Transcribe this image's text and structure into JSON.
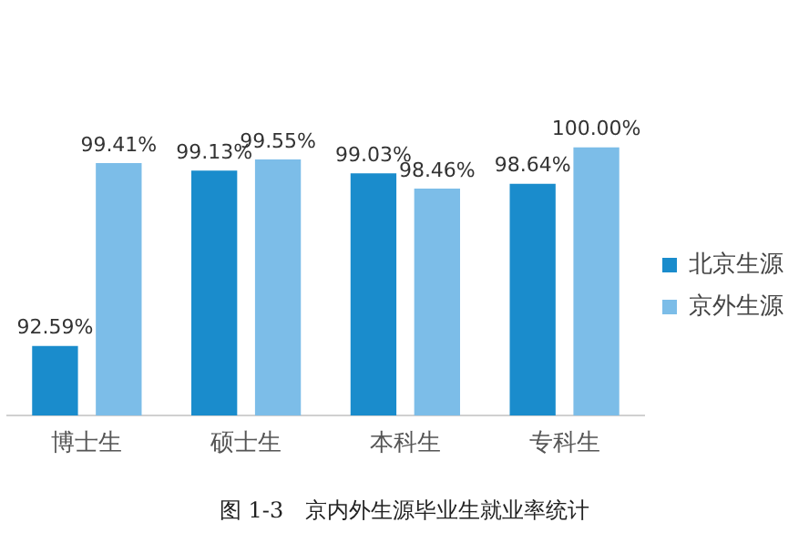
{
  "chart_data": {
    "type": "bar",
    "title": "图 1-3　京内外生源毕业生就业率统计",
    "categories": [
      "博士生",
      "硕士生",
      "本科生",
      "专科生"
    ],
    "series": [
      {
        "name": "北京生源",
        "color": "#1a8ccc",
        "values": [
          92.59,
          99.13,
          99.03,
          98.64
        ],
        "value_labels": [
          "92.59%",
          "99.13%",
          "99.03%",
          "98.64%"
        ]
      },
      {
        "name": "京外生源",
        "color": "#7cbde8",
        "values": [
          99.41,
          99.55,
          98.46,
          100.0
        ],
        "value_labels": [
          "99.41%",
          "99.55%",
          "98.46%",
          "100.00%"
        ]
      }
    ],
    "tick_labels": "x",
    "grid": false,
    "legend": "right"
  }
}
